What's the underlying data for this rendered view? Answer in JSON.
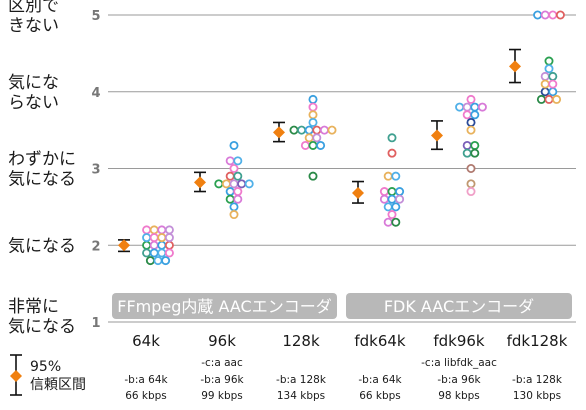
{
  "chart_data": {
    "type": "scatter",
    "title": "",
    "xlabel": "",
    "ylabel": "",
    "ylim": [
      1,
      5
    ],
    "grid": true,
    "y_tick_labels": [
      {
        "value": 1,
        "label": "1",
        "desc": [
          "非常に",
          "気になる"
        ]
      },
      {
        "value": 2,
        "label": "2",
        "desc": [
          "気になる"
        ]
      },
      {
        "value": 3,
        "label": "3",
        "desc": [
          "わずかに",
          "気になる"
        ]
      },
      {
        "value": 4,
        "label": "4",
        "desc": [
          "気にな",
          "らない"
        ]
      },
      {
        "value": 5,
        "label": "5",
        "desc": [
          "区別で",
          "きない"
        ]
      }
    ],
    "categories": [
      "64k",
      "96k",
      "128k",
      "fdk64k",
      "fdk96k",
      "fdk128k"
    ],
    "groups": [
      {
        "label": "FFmpeg内蔵 AACエンコーダ",
        "categories": [
          "64k",
          "96k",
          "128k"
        ]
      },
      {
        "label": "FDK AACエンコーダ",
        "categories": [
          "fdk64k",
          "fdk96k",
          "fdk128k"
        ]
      }
    ],
    "encoder_options": [
      {
        "category": "64k",
        "codec": "",
        "bitrate_opt": "-b:a 64k",
        "actual": "66 kbps"
      },
      {
        "category": "96k",
        "codec": "-c:a aac",
        "bitrate_opt": "-b:a 96k",
        "actual": "99 kbps"
      },
      {
        "category": "128k",
        "codec": "",
        "bitrate_opt": "-b:a 128k",
        "actual": "134 kbps"
      },
      {
        "category": "fdk64k",
        "codec": "",
        "bitrate_opt": "-b:a 64k",
        "actual": "66 kbps"
      },
      {
        "category": "fdk96k",
        "codec": "-c:a libfdk_aac",
        "bitrate_opt": "-b:a 96k",
        "actual": "98 kbps"
      },
      {
        "category": "fdk128k",
        "codec": "",
        "bitrate_opt": "-b:a 128k",
        "actual": "130 kbps"
      }
    ],
    "series": [
      {
        "category": "64k",
        "mean": 2.0,
        "ci_low": 1.92,
        "ci_high": 2.07,
        "points": [
          {
            "y": 2.2,
            "c": "#f07acc"
          },
          {
            "y": 2.2,
            "c": "#e8b25c"
          },
          {
            "y": 2.2,
            "c": "#d87ad8"
          },
          {
            "y": 2.2,
            "c": "#c38fd8"
          },
          {
            "y": 2.1,
            "c": "#50b0e8"
          },
          {
            "y": 2.1,
            "c": "#f07acc"
          },
          {
            "y": 2.1,
            "c": "#e8b25c"
          },
          {
            "y": 2.1,
            "c": "#c38fd8"
          },
          {
            "y": 2.0,
            "c": "#2aa050"
          },
          {
            "y": 2.0,
            "c": "#d87ad8"
          },
          {
            "y": 2.0,
            "c": "#3aa0e0"
          },
          {
            "y": 2.0,
            "c": "#e06060"
          },
          {
            "y": 1.9,
            "c": "#40a090"
          },
          {
            "y": 1.9,
            "c": "#3aa0e0"
          },
          {
            "y": 1.9,
            "c": "#50b0e8"
          },
          {
            "y": 1.9,
            "c": "#f07acc"
          },
          {
            "y": 1.8,
            "c": "#2a8a48"
          },
          {
            "y": 1.8,
            "c": "#50b0e8"
          },
          {
            "y": 1.8,
            "c": "#3aa0e0"
          }
        ]
      },
      {
        "category": "96k",
        "mean": 2.82,
        "ci_low": 2.7,
        "ci_high": 2.95,
        "points": [
          {
            "y": 3.3,
            "c": "#3aa0e0"
          },
          {
            "y": 3.1,
            "c": "#d87ad8"
          },
          {
            "y": 3.1,
            "c": "#50b0e8"
          },
          {
            "y": 3.0,
            "c": "#f07acc"
          },
          {
            "y": 2.9,
            "c": "#e06060"
          },
          {
            "y": 2.9,
            "c": "#40a090"
          },
          {
            "y": 2.8,
            "c": "#2aa050"
          },
          {
            "y": 2.8,
            "c": "#e8b25c"
          },
          {
            "y": 2.8,
            "c": "#c38fd8"
          },
          {
            "y": 2.8,
            "c": "#7a5fb8"
          },
          {
            "y": 2.8,
            "c": "#50b0e8"
          },
          {
            "y": 2.7,
            "c": "#3aa0e0"
          },
          {
            "y": 2.7,
            "c": "#f07acc"
          },
          {
            "y": 2.6,
            "c": "#2aa050"
          },
          {
            "y": 2.6,
            "c": "#d87ad8"
          },
          {
            "y": 2.5,
            "c": "#3aa0e0"
          },
          {
            "y": 2.4,
            "c": "#e8b25c"
          }
        ]
      },
      {
        "category": "128k",
        "mean": 3.47,
        "ci_low": 3.35,
        "ci_high": 3.6,
        "points": [
          {
            "y": 3.9,
            "c": "#3aa0e0"
          },
          {
            "y": 3.8,
            "c": "#f07acc"
          },
          {
            "y": 3.7,
            "c": "#e8b25c"
          },
          {
            "y": 3.6,
            "c": "#50b0e8"
          },
          {
            "y": 3.5,
            "c": "#2a8a48"
          },
          {
            "y": 3.5,
            "c": "#40a090"
          },
          {
            "y": 3.5,
            "c": "#3aa0e0"
          },
          {
            "y": 3.5,
            "c": "#e06060"
          },
          {
            "y": 3.5,
            "c": "#d87ad8"
          },
          {
            "y": 3.5,
            "c": "#e8b25c"
          },
          {
            "y": 3.4,
            "c": "#e8b25c"
          },
          {
            "y": 3.4,
            "c": "#c38fd8"
          },
          {
            "y": 3.3,
            "c": "#f07acc"
          },
          {
            "y": 3.3,
            "c": "#2aa050"
          },
          {
            "y": 3.3,
            "c": "#3aa0e0"
          },
          {
            "y": 2.9,
            "c": "#2a8a48"
          }
        ]
      },
      {
        "category": "fdk64k",
        "mean": 2.68,
        "ci_low": 2.55,
        "ci_high": 2.83,
        "points": [
          {
            "y": 3.4,
            "c": "#40a090"
          },
          {
            "y": 3.2,
            "c": "#e06060"
          },
          {
            "y": 2.9,
            "c": "#e8b25c"
          },
          {
            "y": 2.9,
            "c": "#50b0e8"
          },
          {
            "y": 2.7,
            "c": "#f07acc"
          },
          {
            "y": 2.7,
            "c": "#2aa050"
          },
          {
            "y": 2.7,
            "c": "#3aa0e0"
          },
          {
            "y": 2.6,
            "c": "#d87ad8"
          },
          {
            "y": 2.6,
            "c": "#3aa0e0"
          },
          {
            "y": 2.6,
            "c": "#c38fd8"
          },
          {
            "y": 2.5,
            "c": "#50b0e8"
          },
          {
            "y": 2.5,
            "c": "#3aa0e0"
          },
          {
            "y": 2.4,
            "c": "#f07acc"
          },
          {
            "y": 2.3,
            "c": "#d87ad8"
          },
          {
            "y": 2.3,
            "c": "#2a8a48"
          }
        ]
      },
      {
        "category": "fdk96k",
        "mean": 3.43,
        "ci_low": 3.25,
        "ci_high": 3.62,
        "points": [
          {
            "y": 3.9,
            "c": "#f07acc"
          },
          {
            "y": 3.8,
            "c": "#50b0e8"
          },
          {
            "y": 3.8,
            "c": "#c38fd8"
          },
          {
            "y": 3.8,
            "c": "#3aa0e0"
          },
          {
            "y": 3.8,
            "c": "#d87ad8"
          },
          {
            "y": 3.7,
            "c": "#f07acc"
          },
          {
            "y": 3.7,
            "c": "#3aa0e0"
          },
          {
            "y": 3.6,
            "c": "#2a4a98"
          },
          {
            "y": 3.5,
            "c": "#e8b25c"
          },
          {
            "y": 3.3,
            "c": "#7a5fb8"
          },
          {
            "y": 3.3,
            "c": "#2aa050"
          },
          {
            "y": 3.2,
            "c": "#40a090"
          },
          {
            "y": 3.2,
            "c": "#2a8a48"
          },
          {
            "y": 3.0,
            "c": "#b07a70"
          },
          {
            "y": 2.8,
            "c": "#c09870"
          },
          {
            "y": 2.7,
            "c": "#f0a0c8"
          }
        ]
      },
      {
        "category": "fdk128k",
        "mean": 4.33,
        "ci_low": 4.12,
        "ci_high": 4.55,
        "points": [
          {
            "y": 5.0,
            "c": "#3aa0e0"
          },
          {
            "y": 5.0,
            "c": "#d87ad8"
          },
          {
            "y": 5.0,
            "c": "#f07acc"
          },
          {
            "y": 5.0,
            "c": "#e06060"
          },
          {
            "y": 4.4,
            "c": "#2aa050"
          },
          {
            "y": 4.3,
            "c": "#50b0e8"
          },
          {
            "y": 4.2,
            "c": "#c38fd8"
          },
          {
            "y": 4.2,
            "c": "#40a090"
          },
          {
            "y": 4.1,
            "c": "#e8b25c"
          },
          {
            "y": 4.1,
            "c": "#f07acc"
          },
          {
            "y": 4.0,
            "c": "#2a4a98"
          },
          {
            "y": 4.0,
            "c": "#3aa0e0"
          },
          {
            "y": 3.9,
            "c": "#2a8a48"
          },
          {
            "y": 3.9,
            "c": "#e06060"
          },
          {
            "y": 3.9,
            "c": "#e8b25c"
          }
        ]
      }
    ],
    "legend": {
      "label_line1": "95%",
      "label_line2": "信頼区間",
      "placement": "bottom-left"
    },
    "colors": {
      "mean_marker": "#f08010",
      "error_bar": "#111111",
      "grid": "#9a9a9a",
      "group_box": "#b8b8b8"
    }
  }
}
